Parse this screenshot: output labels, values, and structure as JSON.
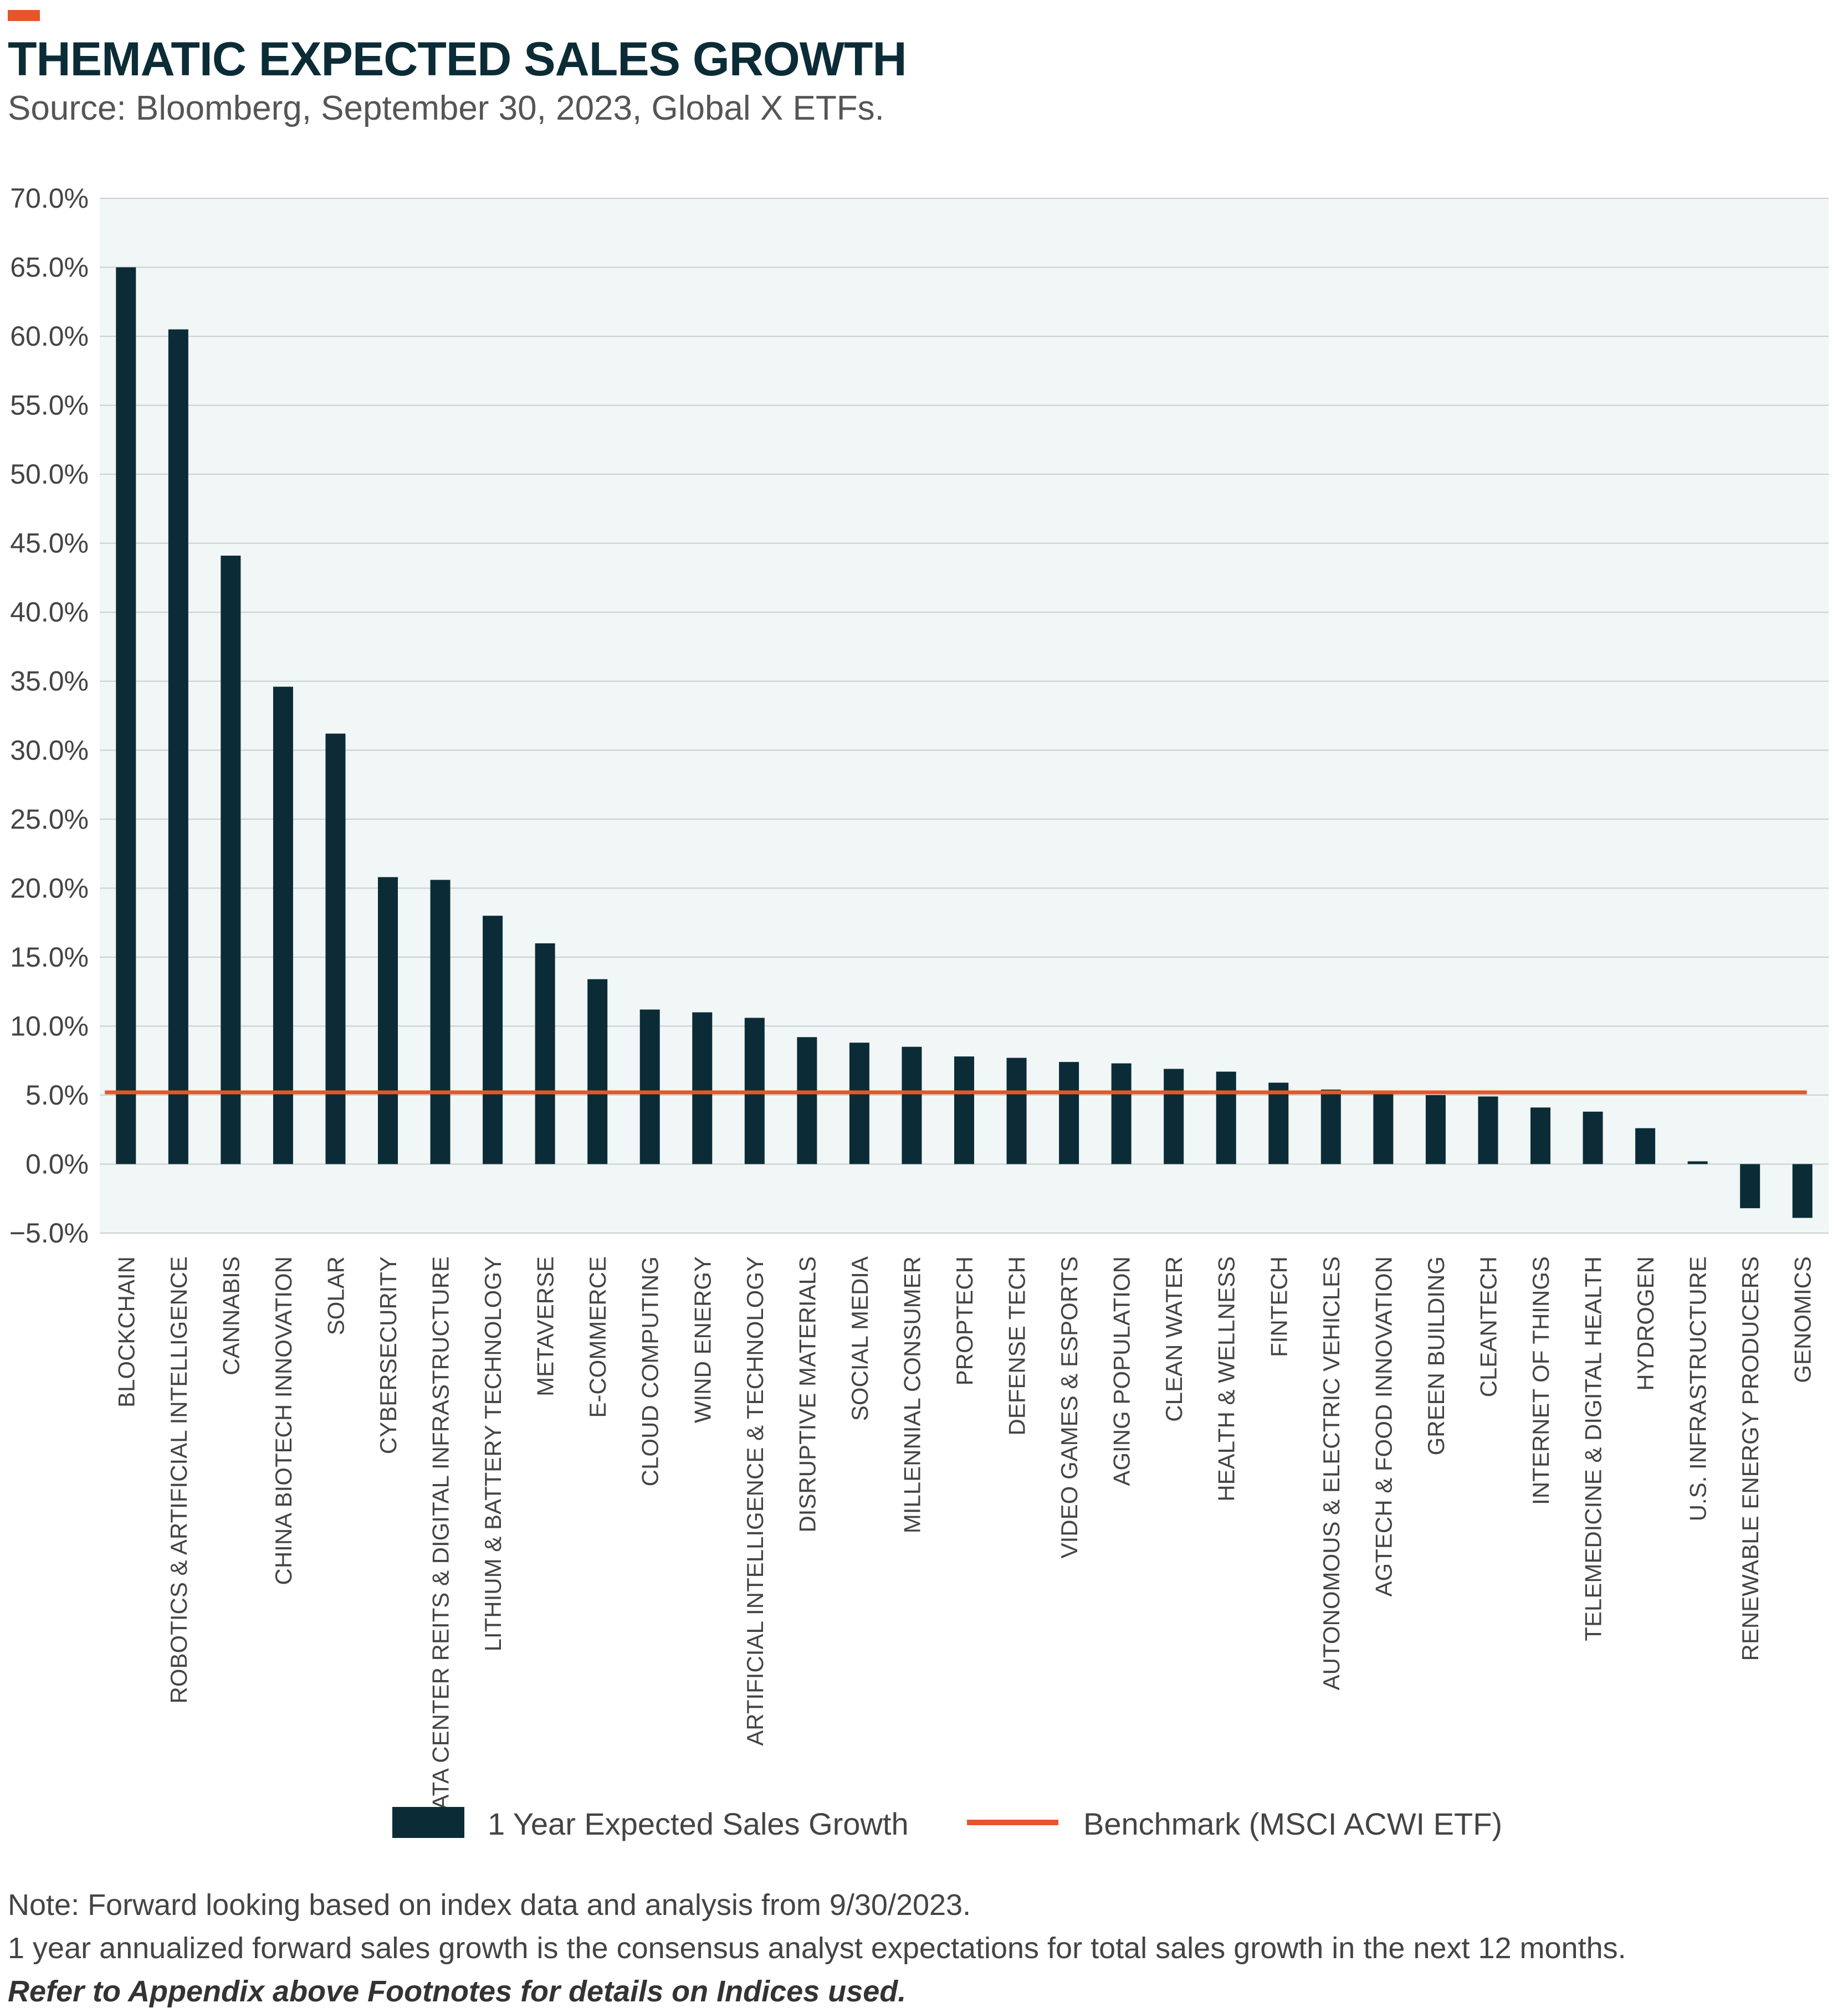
{
  "header": {
    "title": "THEMATIC EXPECTED SALES GROWTH",
    "subtitle": "Source: Bloomberg, September 30, 2023, Global X ETFs."
  },
  "colors": {
    "bar": "#0b2c36",
    "benchmark": "#e8552a",
    "plot_background": "#f1f6f6",
    "gridline": "#c9cfd0",
    "accent": "#e8552a"
  },
  "chart_data": {
    "type": "bar",
    "title": "THEMATIC EXPECTED SALES GROWTH",
    "xlabel": "",
    "ylabel": "",
    "ylim": [
      -5,
      70
    ],
    "yticks": [
      70,
      65,
      60,
      55,
      50,
      45,
      40,
      35,
      30,
      25,
      20,
      15,
      10,
      5,
      0,
      -5
    ],
    "ytick_labels": [
      "70.0%",
      "65.0%",
      "60.0%",
      "55.0%",
      "50.0%",
      "45.0%",
      "40.0%",
      "35.0%",
      "30.0%",
      "25.0%",
      "20.0%",
      "15.0%",
      "10.0%",
      "5.0%",
      "0.0%",
      "−5.0%"
    ],
    "grid": true,
    "legend_position": "bottom",
    "categories": [
      "BLOCKCHAIN",
      "ROBOTICS & ARTIFICIAL INTELLIGENCE",
      "CANNABIS",
      "CHINA BIOTECH INNOVATION",
      "SOLAR",
      "CYBERSECURITY",
      "DATA CENTER REITS & DIGITAL INFRASTRUCTURE",
      "LITHIUM & BATTERY TECHNOLOGY",
      "METAVERSE",
      "E-COMMERCE",
      "CLOUD COMPUTING",
      "WIND ENERGY",
      "ARTIFICIAL INTELLIGENCE & TECHNOLOGY",
      "DISRUPTIVE MATERIALS",
      "SOCIAL MEDIA",
      "MILLENNIAL CONSUMER",
      "PROPTECH",
      "DEFENSE TECH",
      "VIDEO GAMES & ESPORTS",
      "AGING POPULATION",
      "CLEAN WATER",
      "HEALTH & WELLNESS",
      "FINTECH",
      "AUTONOMOUS & ELECTRIC VEHICLES",
      "AGTECH & FOOD INNOVATION",
      "GREEN BUILDING",
      "CLEANTECH",
      "INTERNET OF THINGS",
      "TELEMEDICINE & DIGITAL HEALTH",
      "HYDROGEN",
      "U.S. INFRASTRUCTURE",
      "RENEWABLE ENERGY PRODUCERS",
      "GENOMICS"
    ],
    "series": [
      {
        "name": "1 Year Expected Sales Growth",
        "type": "bar",
        "values": [
          65.0,
          60.5,
          44.1,
          34.6,
          31.2,
          20.8,
          20.6,
          18.0,
          16.0,
          13.4,
          11.2,
          11.0,
          10.6,
          9.2,
          8.8,
          8.5,
          7.8,
          7.7,
          7.4,
          7.3,
          6.9,
          6.7,
          5.9,
          5.4,
          5.1,
          5.0,
          4.9,
          4.1,
          3.8,
          2.6,
          0.2,
          -3.2,
          -3.9
        ]
      },
      {
        "name": "Benchmark (MSCI ACWI ETF)",
        "type": "line",
        "value": 5.2
      }
    ]
  },
  "notes": {
    "line1": "Note: Forward looking based on index data and analysis from 9/30/2023.",
    "line2": "1 year annualized forward sales growth is the consensus analyst expectations for total sales growth in the next 12 months.",
    "line3": "Refer to Appendix above Footnotes for details on Indices used."
  }
}
